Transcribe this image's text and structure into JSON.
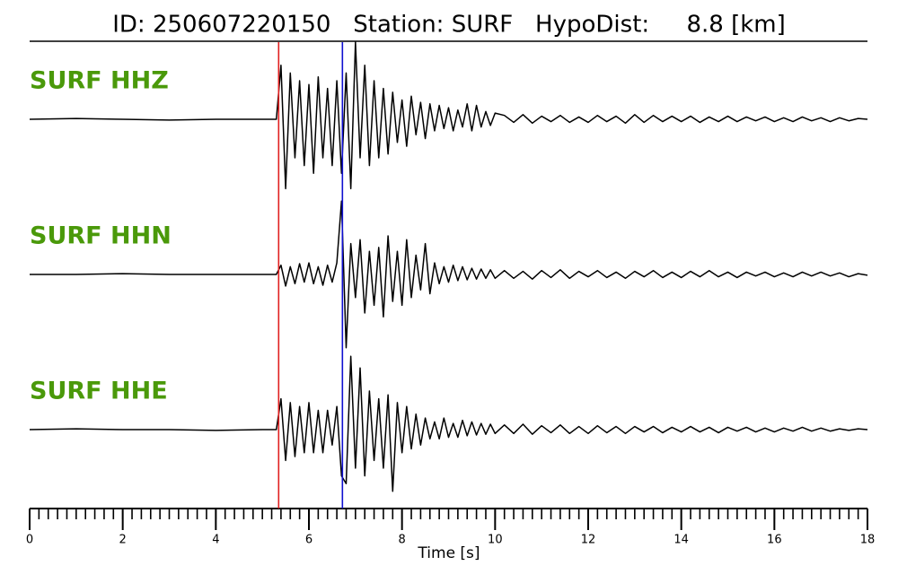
{
  "chart_data": {
    "type": "line",
    "title": "ID: 250607220150   Station: SURF   HypoDist:     8.8 [km]",
    "xlabel": "Time [s]",
    "xlim": [
      0,
      18
    ],
    "xticks": [
      0,
      2,
      4,
      6,
      8,
      10,
      12,
      14,
      16,
      18
    ],
    "xminor": 0.2,
    "ylim": [
      -1,
      1
    ],
    "label_color": "#4a990a",
    "vlines": [
      {
        "x": 5.35,
        "color": "#e02020"
      },
      {
        "x": 6.72,
        "color": "#1010d0"
      }
    ],
    "x": [
      0,
      1,
      2,
      3,
      4,
      5,
      5.3,
      5.4,
      5.5,
      5.6,
      5.7,
      5.8,
      5.9,
      6.0,
      6.1,
      6.2,
      6.3,
      6.4,
      6.5,
      6.6,
      6.7,
      6.8,
      6.9,
      7.0,
      7.1,
      7.2,
      7.3,
      7.4,
      7.5,
      7.6,
      7.7,
      7.8,
      7.9,
      8.0,
      8.1,
      8.2,
      8.3,
      8.4,
      8.5,
      8.6,
      8.7,
      8.8,
      8.9,
      9.0,
      9.1,
      9.2,
      9.3,
      9.4,
      9.5,
      9.6,
      9.7,
      9.8,
      9.9,
      10.0,
      10.2,
      10.4,
      10.6,
      10.8,
      11.0,
      11.2,
      11.4,
      11.6,
      11.8,
      12.0,
      12.2,
      12.4,
      12.6,
      12.8,
      13.0,
      13.2,
      13.4,
      13.6,
      13.8,
      14.0,
      14.2,
      14.4,
      14.6,
      14.8,
      15.0,
      15.2,
      15.4,
      15.6,
      15.8,
      16.0,
      16.2,
      16.4,
      16.6,
      16.8,
      17.0,
      17.2,
      17.4,
      17.6,
      17.8,
      18.0
    ],
    "series": [
      {
        "name": "SURF HHZ",
        "color": "#000000",
        "values": [
          0,
          0.01,
          0,
          -0.01,
          0,
          0,
          0,
          0.7,
          -0.9,
          0.6,
          -0.5,
          0.5,
          -0.6,
          0.45,
          -0.7,
          0.55,
          -0.5,
          0.4,
          -0.6,
          0.5,
          -0.7,
          0.6,
          -0.9,
          1.0,
          -0.5,
          0.7,
          -0.6,
          0.5,
          -0.5,
          0.4,
          -0.45,
          0.35,
          -0.3,
          0.25,
          -0.35,
          0.3,
          -0.2,
          0.22,
          -0.25,
          0.2,
          -0.15,
          0.18,
          -0.12,
          0.15,
          -0.15,
          0.12,
          -0.1,
          0.2,
          -0.15,
          0.18,
          -0.1,
          0.1,
          -0.08,
          0.08,
          0.05,
          -0.04,
          0.06,
          -0.05,
          0.04,
          -0.03,
          0.05,
          -0.04,
          0.03,
          -0.04,
          0.05,
          -0.03,
          0.04,
          -0.05,
          0.06,
          -0.04,
          0.05,
          -0.03,
          0.04,
          -0.03,
          0.04,
          -0.04,
          0.03,
          -0.03,
          0.04,
          -0.03,
          0.03,
          -0.02,
          0.03,
          -0.03,
          0.02,
          -0.03,
          0.03,
          -0.02,
          0.02,
          -0.03,
          0.02,
          -0.02,
          0.01,
          0
        ]
      },
      {
        "name": "SURF HHN",
        "color": "#000000",
        "values": [
          0,
          0,
          0.01,
          0,
          0,
          0,
          0,
          0.12,
          -0.15,
          0.1,
          -0.12,
          0.14,
          -0.1,
          0.15,
          -0.12,
          0.1,
          -0.14,
          0.12,
          -0.1,
          0.15,
          0.95,
          -0.95,
          0.4,
          -0.3,
          0.45,
          -0.5,
          0.3,
          -0.4,
          0.35,
          -0.55,
          0.5,
          -0.35,
          0.3,
          -0.4,
          0.45,
          -0.3,
          0.25,
          -0.2,
          0.4,
          -0.25,
          0.15,
          -0.12,
          0.1,
          -0.1,
          0.12,
          -0.08,
          0.1,
          -0.07,
          0.08,
          -0.06,
          0.07,
          -0.05,
          0.06,
          -0.05,
          0.05,
          -0.05,
          0.04,
          -0.06,
          0.05,
          -0.04,
          0.06,
          -0.05,
          0.04,
          -0.03,
          0.05,
          -0.04,
          0.03,
          -0.05,
          0.04,
          -0.03,
          0.05,
          -0.04,
          0.03,
          -0.04,
          0.04,
          -0.03,
          0.05,
          -0.03,
          0.03,
          -0.04,
          0.03,
          -0.02,
          0.03,
          -0.03,
          0.02,
          -0.03,
          0.03,
          -0.02,
          0.03,
          -0.02,
          0.02,
          -0.03,
          0.01,
          -0.01
        ]
      },
      {
        "name": "SURF HHE",
        "color": "#000000",
        "values": [
          0,
          0.01,
          0,
          0,
          -0.01,
          0,
          0,
          0.4,
          -0.4,
          0.35,
          -0.35,
          0.3,
          -0.3,
          0.35,
          -0.3,
          0.25,
          -0.3,
          0.25,
          -0.2,
          0.3,
          -0.6,
          -0.7,
          0.95,
          -0.5,
          0.8,
          -0.6,
          0.5,
          -0.4,
          0.4,
          -0.5,
          0.45,
          -0.8,
          0.35,
          -0.3,
          0.3,
          -0.25,
          0.2,
          -0.2,
          0.15,
          -0.12,
          0.1,
          -0.12,
          0.15,
          -0.1,
          0.08,
          -0.1,
          0.12,
          -0.08,
          0.1,
          -0.07,
          0.08,
          -0.06,
          0.07,
          -0.05,
          0.06,
          -0.05,
          0.07,
          -0.06,
          0.05,
          -0.04,
          0.06,
          -0.05,
          0.04,
          -0.05,
          0.05,
          -0.04,
          0.04,
          -0.05,
          0.04,
          -0.03,
          0.04,
          -0.04,
          0.03,
          -0.03,
          0.04,
          -0.03,
          0.03,
          -0.04,
          0.03,
          -0.02,
          0.03,
          -0.03,
          0.02,
          -0.03,
          0.02,
          -0.02,
          0.03,
          -0.02,
          0.02,
          -0.02,
          0.01,
          -0.01,
          0.01,
          0
        ]
      }
    ]
  }
}
